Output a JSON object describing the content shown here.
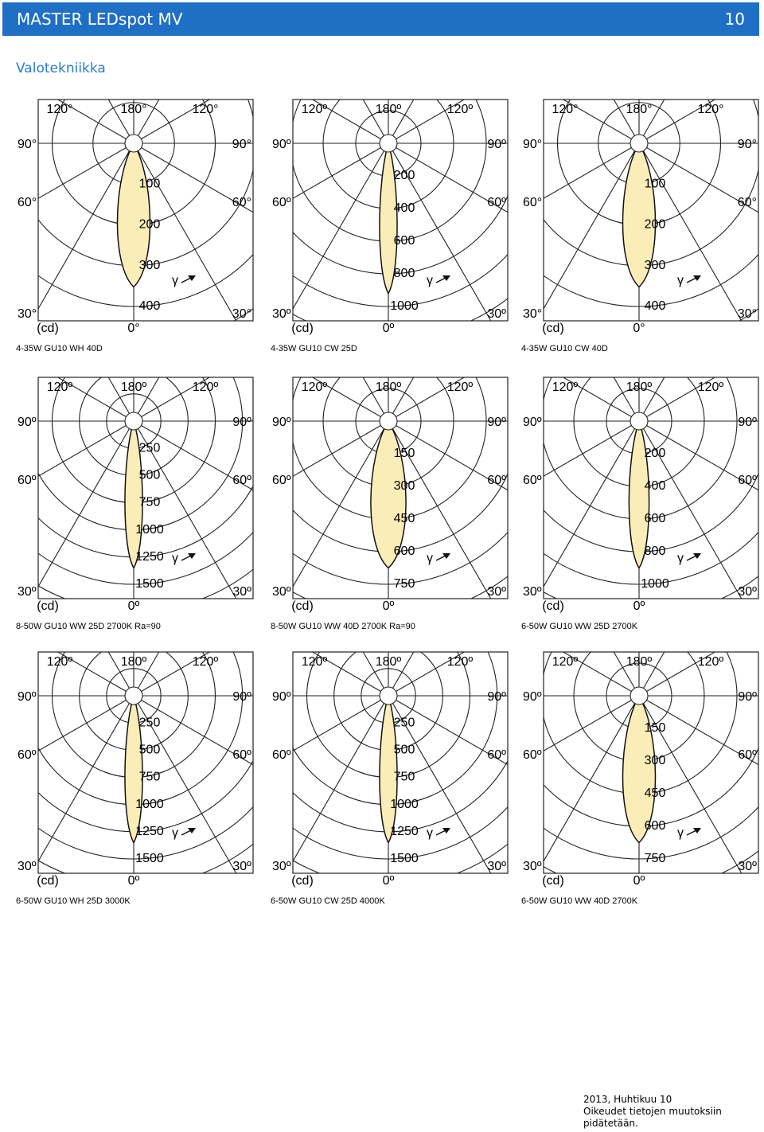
{
  "header": {
    "title": "MASTER LEDspot MV",
    "page": "10"
  },
  "section": "Valotekniikka",
  "diagrams": [
    {
      "angles": [
        "120°",
        "180°",
        "120°",
        "90°",
        "90°",
        "60°",
        "60°",
        "30°",
        "30°"
      ],
      "unit": "(cd)",
      "zero": "0°",
      "gamma": "γ",
      "rings": [
        100,
        200,
        300,
        400
      ],
      "caption": "4-35W GU10 WH 40D"
    },
    {
      "angles": [
        "120º",
        "180º",
        "120º",
        "90º",
        "90º",
        "60º",
        "60º",
        "30º",
        "30º"
      ],
      "unit": "(cd)",
      "zero": "0º",
      "gamma": "γ",
      "rings": [
        200,
        400,
        600,
        800,
        1000
      ],
      "caption": "4-35W GU10 CW 25D"
    },
    {
      "angles": [
        "120°",
        "180°",
        "120°",
        "90°",
        "90°",
        "60°",
        "60°",
        "30°",
        "30°"
      ],
      "unit": "(cd)",
      "zero": "0°",
      "gamma": "γ",
      "rings": [
        100,
        200,
        300,
        400
      ],
      "caption": "4-35W GU10 CW 40D"
    },
    {
      "angles": [
        "120º",
        "180º",
        "120º",
        "90º",
        "90º",
        "60º",
        "60º",
        "30º",
        "30º"
      ],
      "unit": "(cd)",
      "zero": "0º",
      "gamma": "γ",
      "rings": [
        250,
        500,
        750,
        1000,
        1250,
        1500
      ],
      "caption": "8-50W GU10 WW 25D 2700K Ra=90"
    },
    {
      "angles": [
        "120º",
        "180º",
        "120º",
        "90º",
        "90º",
        "60º",
        "60º",
        "30º",
        "30º"
      ],
      "unit": "(cd)",
      "zero": "0º",
      "gamma": "γ",
      "rings": [
        150,
        300,
        450,
        600,
        750
      ],
      "caption": "8-50W GU10 WW 40D 2700K Ra=90"
    },
    {
      "angles": [
        "120º",
        "180º",
        "120º",
        "90º",
        "90º",
        "60º",
        "60º",
        "30º",
        "30º"
      ],
      "unit": "(cd)",
      "zero": "0º",
      "gamma": "γ",
      "rings": [
        200,
        400,
        600,
        800,
        1000
      ],
      "caption": "6-50W GU10 WW 25D 2700K"
    },
    {
      "angles": [
        "120º",
        "180º",
        "120º",
        "90º",
        "90º",
        "60º",
        "60º",
        "30º",
        "30º"
      ],
      "unit": "(cd)",
      "zero": "0º",
      "gamma": "γ",
      "rings": [
        250,
        500,
        750,
        1000,
        1250,
        1500
      ],
      "caption": "6-50W GU10 WH 25D 3000K"
    },
    {
      "angles": [
        "120º",
        "180º",
        "120º",
        "90º",
        "90º",
        "60º",
        "60º",
        "30º",
        "30º"
      ],
      "unit": "(cd)",
      "zero": "0º",
      "gamma": "γ",
      "rings": [
        250,
        500,
        750,
        1000,
        1250,
        1500
      ],
      "caption": "6-50W GU10 CW 25D 4000K"
    },
    {
      "angles": [
        "120º",
        "180º",
        "120º",
        "90º",
        "90º",
        "60º",
        "60º",
        "30º",
        "30º"
      ],
      "unit": "(cd)",
      "zero": "0º",
      "gamma": "γ",
      "rings": [
        150,
        300,
        450,
        600,
        750
      ],
      "caption": "6-50W GU10 WW 40D 2700K"
    }
  ],
  "footer": [
    "2013, Huhtikuu 10",
    "Oikeudet tietojen muutoksiin",
    "pidätetään."
  ]
}
